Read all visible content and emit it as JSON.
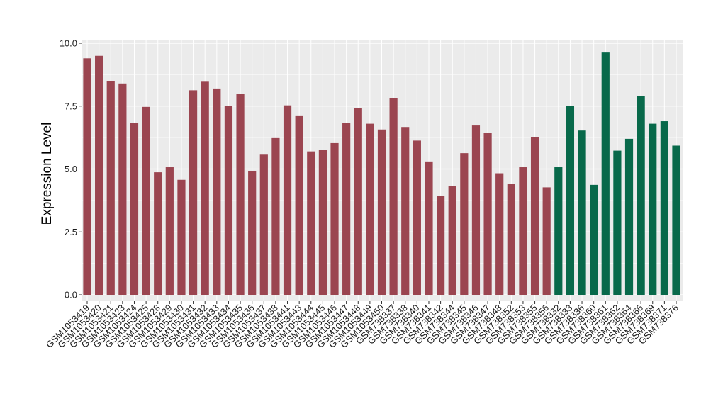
{
  "chart_data": {
    "type": "bar",
    "title": "",
    "xlabel": "",
    "ylabel": "Expression Level",
    "ylim": [
      0,
      10
    ],
    "yticks": [
      "0.0",
      "2.5",
      "5.0",
      "7.5",
      "10.0"
    ],
    "ytick_values": [
      0,
      2.5,
      5,
      7.5,
      10
    ],
    "grid": true,
    "colors": {
      "group_a": "#9b4550",
      "group_b": "#08694a",
      "panel": "#ebebeb",
      "grid": "#ffffff"
    },
    "categories": [
      "GSM1053419",
      "GSM1053420",
      "GSM1053421",
      "GSM1053423",
      "GSM1053424",
      "GSM1053425",
      "GSM1053428",
      "GSM1053429",
      "GSM1053430",
      "GSM1053431",
      "GSM1053432",
      "GSM1053433",
      "GSM1053434",
      "GSM1053435",
      "GSM1053436",
      "GSM1053437",
      "GSM1053438",
      "GSM1053441",
      "GSM1053443",
      "GSM1053444",
      "GSM1053445",
      "GSM1053446",
      "GSM1053447",
      "GSM1053448",
      "GSM1053449",
      "GSM1053450",
      "GSM738337",
      "GSM738338",
      "GSM738340",
      "GSM738341",
      "GSM738342",
      "GSM738344",
      "GSM738345",
      "GSM738346",
      "GSM738347",
      "GSM738348",
      "GSM738352",
      "GSM738353",
      "GSM738355",
      "GSM738356",
      "GSM738332",
      "GSM738333",
      "GSM738336",
      "GSM738360",
      "GSM738361",
      "GSM738362",
      "GSM738364",
      "GSM738366",
      "GSM738369",
      "GSM738371",
      "GSM738376"
    ],
    "values": [
      9.4,
      9.5,
      8.5,
      8.4,
      6.83,
      7.47,
      4.87,
      5.07,
      4.57,
      8.13,
      8.47,
      8.2,
      7.5,
      8.0,
      4.93,
      5.57,
      6.23,
      7.53,
      7.13,
      5.7,
      5.77,
      6.03,
      6.83,
      7.43,
      6.8,
      6.57,
      7.83,
      6.67,
      6.13,
      5.3,
      3.93,
      4.33,
      5.63,
      6.73,
      6.43,
      4.83,
      4.4,
      5.07,
      6.27,
      4.27,
      5.07,
      7.5,
      6.53,
      4.37,
      9.63,
      5.73,
      6.2,
      7.9,
      6.8,
      6.9,
      5.93
    ],
    "groups": [
      "a",
      "a",
      "a",
      "a",
      "a",
      "a",
      "a",
      "a",
      "a",
      "a",
      "a",
      "a",
      "a",
      "a",
      "a",
      "a",
      "a",
      "a",
      "a",
      "a",
      "a",
      "a",
      "a",
      "a",
      "a",
      "a",
      "a",
      "a",
      "a",
      "a",
      "a",
      "a",
      "a",
      "a",
      "a",
      "a",
      "a",
      "a",
      "a",
      "a",
      "b",
      "b",
      "b",
      "b",
      "b",
      "b",
      "b",
      "b",
      "b",
      "b",
      "b"
    ]
  }
}
